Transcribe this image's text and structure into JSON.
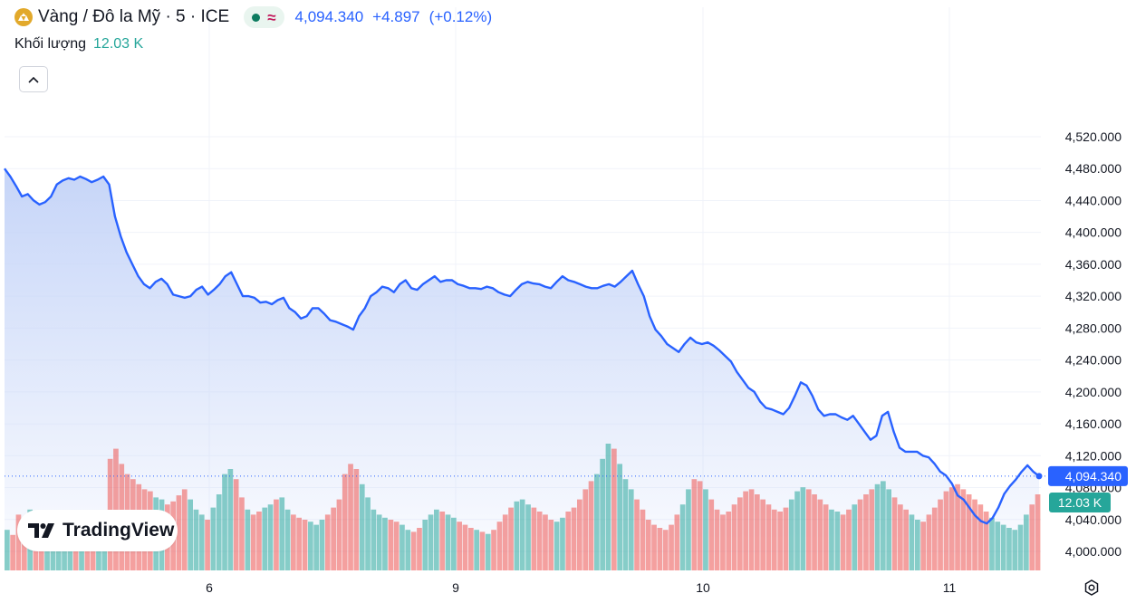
{
  "header": {
    "symbol_title": "Vàng / Đô la Mỹ · 5 · ICE",
    "price": "4,094.340",
    "change": "+4.897",
    "change_pct": "(+0.12%)",
    "status_icon": "market-open-dot",
    "approx_icon": "≈"
  },
  "volume": {
    "label": "Khối lượng",
    "value": "12.03 K"
  },
  "logo": {
    "text": "TradingView"
  },
  "colors": {
    "line": "#2962ff",
    "fill_top": "#c6d5f8",
    "vol_up": "#26a69a",
    "vol_down": "#ef5350",
    "grid": "#f0f3fa",
    "price_tag": "#2962ff",
    "volume_tag": "#26a69a"
  },
  "chart_data": {
    "type": "area",
    "y_axis_position": "right",
    "ylim": [
      4000,
      4520
    ],
    "yticks": [
      "4,520.000",
      "4,480.000",
      "4,440.000",
      "4,400.000",
      "4,360.000",
      "4,320.000",
      "4,280.000",
      "4,240.000",
      "4,200.000",
      "4,160.000",
      "4,120.000",
      "4,080.000",
      "4,040.000",
      "4,000.000"
    ],
    "xticks": [
      "6",
      "9",
      "10",
      "11"
    ],
    "grid": true,
    "last_price_label": "4,094.340",
    "last_price": 4094.34,
    "volume_label": "12.03 K",
    "series": [
      {
        "values": [
          4480,
          4470,
          4458,
          4445,
          4448,
          4440,
          4435,
          4438,
          4445,
          4460,
          4465,
          4468,
          4466,
          4470,
          4467,
          4463,
          4466,
          4470,
          4460,
          4420,
          4395,
          4375,
          4360,
          4345,
          4335,
          4330,
          4338,
          4342,
          4335,
          4322,
          4320,
          4318,
          4320,
          4328,
          4332,
          4322,
          4328,
          4335,
          4345,
          4350,
          4335,
          4320,
          4320,
          4318,
          4312,
          4313,
          4310,
          4315,
          4318,
          4305,
          4300,
          4292,
          4295,
          4305,
          4305,
          4298,
          4290,
          4288,
          4285,
          4282,
          4278,
          4295,
          4305,
          4320,
          4325,
          4332,
          4330,
          4325,
          4335,
          4340,
          4330,
          4328,
          4335,
          4340,
          4345,
          4338,
          4340,
          4340,
          4335,
          4333,
          4330,
          4330,
          4329,
          4332,
          4330,
          4325,
          4322,
          4320,
          4328,
          4335,
          4338,
          4336,
          4335,
          4332,
          4330,
          4338,
          4345,
          4340,
          4338,
          4335,
          4332,
          4330,
          4330,
          4333,
          4335,
          4332,
          4338,
          4345,
          4352,
          4335,
          4320,
          4295,
          4278,
          4270,
          4260,
          4255,
          4250,
          4260,
          4268,
          4262,
          4260,
          4262,
          4258,
          4252,
          4245,
          4238,
          4225,
          4215,
          4205,
          4200,
          4188,
          4180,
          4178,
          4175,
          4172,
          4180,
          4195,
          4212,
          4208,
          4195,
          4178,
          4170,
          4172,
          4172,
          4168,
          4165,
          4170,
          4160,
          4150,
          4140,
          4145,
          4170,
          4175,
          4150,
          4130,
          4125,
          4125,
          4125,
          4120,
          4118,
          4110,
          4100,
          4095,
          4085,
          4070,
          4065,
          4055,
          4045,
          4038,
          4035,
          4042,
          4055,
          4072,
          4082,
          4090,
          4100,
          4108,
          4100,
          4094.34
        ]
      }
    ],
    "volume_series": {
      "values": [
        40,
        35,
        55,
        48,
        60,
        52,
        45,
        50,
        58,
        42,
        38,
        44,
        50,
        46,
        40,
        36,
        52,
        48,
        110,
        120,
        105,
        95,
        90,
        85,
        80,
        78,
        72,
        70,
        65,
        68,
        74,
        80,
        70,
        60,
        55,
        50,
        62,
        75,
        95,
        100,
        90,
        72,
        60,
        55,
        58,
        62,
        65,
        70,
        72,
        60,
        55,
        52,
        50,
        48,
        45,
        50,
        55,
        62,
        70,
        95,
        105,
        100,
        85,
        72,
        60,
        55,
        52,
        50,
        48,
        45,
        40,
        38,
        42,
        50,
        55,
        60,
        58,
        55,
        52,
        48,
        45,
        42,
        40,
        38,
        36,
        40,
        48,
        55,
        62,
        68,
        70,
        65,
        62,
        58,
        55,
        50,
        48,
        52,
        58,
        62,
        70,
        80,
        88,
        95,
        110,
        125,
        120,
        105,
        90,
        80,
        70,
        60,
        50,
        45,
        42,
        40,
        45,
        55,
        65,
        80,
        90,
        88,
        80,
        70,
        60,
        55,
        58,
        65,
        72,
        78,
        80,
        75,
        70,
        65,
        60,
        58,
        62,
        70,
        78,
        82,
        80,
        75,
        70,
        65,
        60,
        58,
        55,
        60,
        65,
        70,
        75,
        80,
        85,
        88,
        80,
        72,
        65,
        60,
        55,
        50,
        48,
        55,
        62,
        70,
        78,
        82,
        85,
        80,
        75,
        70,
        65,
        58,
        52,
        48,
        45,
        42,
        40,
        45,
        55,
        65,
        75
      ]
    }
  }
}
